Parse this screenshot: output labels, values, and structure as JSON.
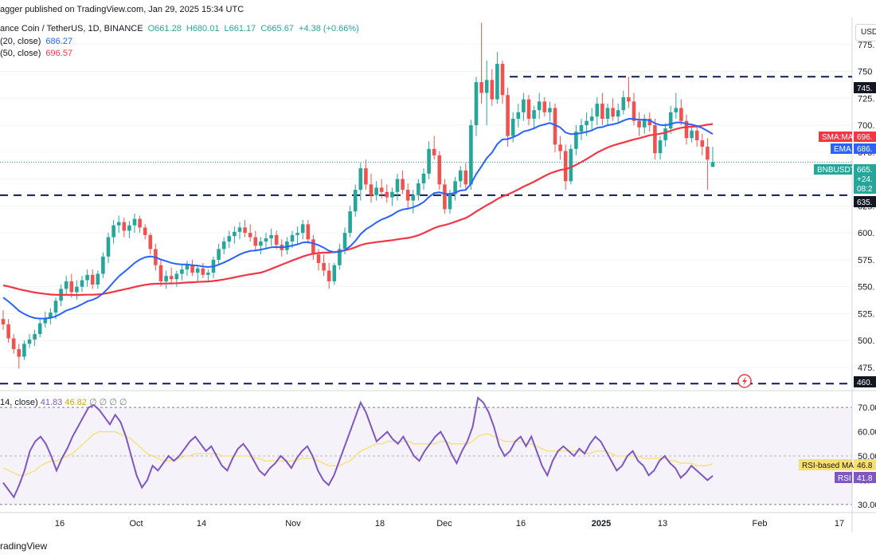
{
  "header": {
    "publisher": "agger published on TradingView.com, Jan 29, 2025 15:34 UTC",
    "symbol": "ance Coin / TetherUS, 1D, BINANCE",
    "open": "O661.28",
    "high": "H680.01",
    "low": "L661.17",
    "close": "C665.67",
    "change": "+4.38 (+0.66%)",
    "ema_label": "(20, close)",
    "ema_value": "686.27",
    "sma_label": "(50, close)",
    "sma_value": "696.57",
    "currency": "USD"
  },
  "rsi_header": {
    "label": "14, close)",
    "rsi": "41.83",
    "rsi_ma": "46.82",
    "zeros": "∅ ∅ ∅ ∅"
  },
  "price_tags": {
    "resistance": "745.",
    "support": "635.",
    "low_support": "460.",
    "sma": "696.",
    "sma_name": "SMA:MA",
    "ema": "686.",
    "ema_name": "EMA",
    "last": "665.",
    "last_name": "BNBUSDT",
    "last_change": "+24.",
    "countdown": "08:2",
    "rsi_ma_tag": "46.8",
    "rsi_ma_name": "RSI-based MA",
    "rsi_tag": "41.8",
    "rsi_name": "RSI"
  },
  "watermark": "radingView",
  "colors": {
    "up": "#26a69a",
    "down": "#ef5350",
    "ema": "#2962ff",
    "sma": "#f23645",
    "rsi": "#7e57c2",
    "rsi_ma": "#f7e06b"
  },
  "chart_data": [
    {
      "type": "candlestick",
      "title": "BNB/USDT 1D",
      "ylim": [
        455,
        800
      ],
      "y_ticks": [
        775,
        750,
        725,
        700,
        675,
        650,
        625,
        600,
        575,
        550,
        525,
        500,
        475
      ],
      "y_tick_labels": [
        "775.",
        "750",
        "725.",
        "700.",
        "675.",
        "650.",
        "625.",
        "600.",
        "575.",
        "550.",
        "525.",
        "500.",
        "475."
      ],
      "x_tick_labels": [
        "16",
        "Oct",
        "14",
        "Nov",
        "18",
        "Dec",
        "16",
        "2025",
        "13",
        "Feb",
        "17"
      ],
      "horizontal_levels": [
        745,
        635,
        460
      ],
      "ohlc": [
        [
          520,
          528,
          510,
          515
        ],
        [
          515,
          520,
          498,
          502
        ],
        [
          502,
          506,
          488,
          492
        ],
        [
          492,
          497,
          474,
          485
        ],
        [
          485,
          500,
          482,
          497
        ],
        [
          497,
          506,
          493,
          501
        ],
        [
          501,
          510,
          495,
          506
        ],
        [
          506,
          520,
          503,
          516
        ],
        [
          516,
          527,
          512,
          521
        ],
        [
          521,
          530,
          515,
          526
        ],
        [
          526,
          540,
          520,
          537
        ],
        [
          537,
          552,
          532,
          548
        ],
        [
          548,
          560,
          542,
          555
        ],
        [
          555,
          562,
          540,
          545
        ],
        [
          545,
          556,
          538,
          550
        ],
        [
          550,
          560,
          545,
          556
        ],
        [
          556,
          566,
          550,
          561
        ],
        [
          561,
          566,
          548,
          552
        ],
        [
          552,
          565,
          548,
          562
        ],
        [
          562,
          582,
          558,
          578
        ],
        [
          578,
          600,
          572,
          596
        ],
        [
          596,
          612,
          590,
          607
        ],
        [
          607,
          616,
          600,
          610
        ],
        [
          610,
          614,
          596,
          602
        ],
        [
          602,
          611,
          595,
          607
        ],
        [
          607,
          618,
          600,
          613
        ],
        [
          613,
          616,
          600,
          605
        ],
        [
          605,
          608,
          594,
          598
        ],
        [
          598,
          600,
          580,
          585
        ],
        [
          585,
          590,
          565,
          570
        ],
        [
          570,
          575,
          550,
          555
        ],
        [
          555,
          565,
          548,
          560
        ],
        [
          560,
          568,
          552,
          557
        ],
        [
          557,
          565,
          550,
          562
        ],
        [
          562,
          570,
          556,
          566
        ],
        [
          566,
          574,
          560,
          570
        ],
        [
          570,
          575,
          560,
          563
        ],
        [
          563,
          570,
          555,
          567
        ],
        [
          567,
          572,
          558,
          561
        ],
        [
          561,
          566,
          554,
          563
        ],
        [
          563,
          578,
          558,
          575
        ],
        [
          575,
          590,
          570,
          585
        ],
        [
          585,
          596,
          580,
          592
        ],
        [
          592,
          602,
          586,
          597
        ],
        [
          597,
          606,
          590,
          601
        ],
        [
          601,
          610,
          594,
          605
        ],
        [
          605,
          612,
          596,
          600
        ],
        [
          600,
          608,
          592,
          596
        ],
        [
          596,
          602,
          584,
          588
        ],
        [
          588,
          596,
          580,
          592
        ],
        [
          592,
          600,
          586,
          595
        ],
        [
          595,
          604,
          588,
          598
        ],
        [
          598,
          602,
          585,
          589
        ],
        [
          589,
          594,
          578,
          584
        ],
        [
          584,
          596,
          580,
          592
        ],
        [
          592,
          602,
          586,
          598
        ],
        [
          598,
          606,
          590,
          600
        ],
        [
          600,
          612,
          594,
          608
        ],
        [
          608,
          612,
          590,
          594
        ],
        [
          594,
          598,
          575,
          580
        ],
        [
          580,
          585,
          565,
          572
        ],
        [
          572,
          580,
          560,
          565
        ],
        [
          565,
          572,
          548,
          555
        ],
        [
          555,
          572,
          552,
          570
        ],
        [
          570,
          590,
          566,
          585
        ],
        [
          585,
          605,
          580,
          600
        ],
        [
          600,
          625,
          596,
          620
        ],
        [
          620,
          645,
          615,
          640
        ],
        [
          640,
          665,
          630,
          660
        ],
        [
          660,
          668,
          640,
          645
        ],
        [
          645,
          655,
          628,
          635
        ],
        [
          635,
          648,
          630,
          642
        ],
        [
          642,
          650,
          632,
          638
        ],
        [
          638,
          645,
          628,
          633
        ],
        [
          633,
          642,
          625,
          638
        ],
        [
          638,
          655,
          630,
          650
        ],
        [
          650,
          658,
          636,
          640
        ],
        [
          640,
          646,
          622,
          630
        ],
        [
          630,
          640,
          618,
          635
        ],
        [
          635,
          650,
          630,
          646
        ],
        [
          646,
          660,
          640,
          655
        ],
        [
          655,
          685,
          650,
          678
        ],
        [
          678,
          690,
          668,
          672
        ],
        [
          672,
          676,
          640,
          645
        ],
        [
          645,
          650,
          618,
          622
        ],
        [
          622,
          640,
          618,
          636
        ],
        [
          636,
          652,
          630,
          648
        ],
        [
          648,
          662,
          642,
          658
        ],
        [
          658,
          665,
          640,
          645
        ],
        [
          645,
          705,
          640,
          700
        ],
        [
          700,
          745,
          690,
          740
        ],
        [
          740,
          795,
          720,
          730
        ],
        [
          730,
          760,
          700,
          742
        ],
        [
          742,
          752,
          718,
          724
        ],
        [
          724,
          768,
          720,
          757
        ],
        [
          757,
          760,
          720,
          728
        ],
        [
          728,
          735,
          680,
          690
        ],
        [
          690,
          712,
          684,
          706
        ],
        [
          706,
          720,
          698,
          712
        ],
        [
          712,
          730,
          704,
          724
        ],
        [
          724,
          728,
          700,
          706
        ],
        [
          706,
          718,
          696,
          714
        ],
        [
          714,
          730,
          706,
          722
        ],
        [
          722,
          726,
          708,
          712
        ],
        [
          712,
          722,
          704,
          716
        ],
        [
          716,
          720,
          675,
          682
        ],
        [
          682,
          690,
          668,
          676
        ],
        [
          676,
          682,
          640,
          648
        ],
        [
          648,
          682,
          645,
          678
        ],
        [
          678,
          700,
          672,
          694
        ],
        [
          694,
          706,
          686,
          700
        ],
        [
          700,
          712,
          690,
          704
        ],
        [
          704,
          716,
          696,
          708
        ],
        [
          708,
          726,
          700,
          720
        ],
        [
          720,
          730,
          700,
          706
        ],
        [
          706,
          720,
          700,
          716
        ],
        [
          716,
          725,
          704,
          708
        ],
        [
          708,
          720,
          702,
          714
        ],
        [
          714,
          732,
          710,
          726
        ],
        [
          726,
          745,
          716,
          722
        ],
        [
          722,
          730,
          700,
          704
        ],
        [
          704,
          712,
          690,
          698
        ],
        [
          698,
          710,
          692,
          706
        ],
        [
          706,
          712,
          694,
          700
        ],
        [
          700,
          706,
          668,
          674
        ],
        [
          674,
          690,
          668,
          686
        ],
        [
          686,
          702,
          680,
          697
        ],
        [
          697,
          718,
          692,
          712
        ],
        [
          712,
          730,
          706,
          716
        ],
        [
          716,
          724,
          700,
          704
        ],
        [
          704,
          710,
          682,
          688
        ],
        [
          688,
          700,
          684,
          695
        ],
        [
          695,
          700,
          680,
          686
        ],
        [
          686,
          692,
          672,
          680
        ],
        [
          680,
          688,
          640,
          668
        ],
        [
          661.28,
          680.01,
          661.17,
          665.67
        ]
      ],
      "series": [
        {
          "name": "EMA (20, close)",
          "last": 686.27
        },
        {
          "name": "SMA (50, close)",
          "last": 696.57
        }
      ]
    },
    {
      "type": "line",
      "title": "RSI (14, close)",
      "ylim": [
        27,
        73
      ],
      "y_ticks": [
        70,
        60,
        50,
        40,
        30
      ],
      "y_tick_labels": [
        "70.00",
        "60.00",
        "50.00",
        "40.",
        "30.00"
      ],
      "bands": [
        30,
        70
      ],
      "series": [
        {
          "name": "RSI",
          "values": [
            39,
            36,
            33,
            38,
            44,
            52,
            56,
            58,
            55,
            50,
            44,
            49,
            53,
            58,
            62,
            66,
            70,
            71,
            69,
            66,
            63,
            67,
            64,
            58,
            50,
            42,
            37,
            40,
            46,
            44,
            47,
            50,
            48,
            50,
            53,
            56,
            58,
            55,
            52,
            54,
            50,
            46,
            44,
            49,
            53,
            55,
            52,
            48,
            44,
            42,
            45,
            47,
            50,
            48,
            45,
            49,
            52,
            54,
            50,
            44,
            40,
            38,
            42,
            48,
            54,
            60,
            66,
            72,
            68,
            62,
            56,
            58,
            60,
            57,
            55,
            58,
            54,
            50,
            48,
            52,
            55,
            58,
            60,
            56,
            51,
            47,
            52,
            56,
            62,
            74,
            72,
            68,
            62,
            54,
            50,
            52,
            56,
            58,
            54,
            58,
            52,
            46,
            42,
            48,
            52,
            54,
            52,
            50,
            53,
            51,
            55,
            58,
            56,
            52,
            48,
            44,
            46,
            50,
            52,
            48,
            46,
            42,
            44,
            48,
            50,
            47,
            45,
            41,
            43,
            46,
            44,
            42,
            40,
            41.83
          ]
        },
        {
          "name": "RSI-based MA",
          "values": [
            45,
            44,
            43,
            42,
            42,
            43,
            44,
            46,
            47,
            48,
            48,
            49,
            50,
            51,
            53,
            55,
            57,
            59,
            60,
            60,
            60,
            60,
            59,
            58,
            57,
            55,
            53,
            51,
            50,
            49,
            48,
            48,
            48,
            49,
            50,
            50,
            51,
            51,
            51,
            51,
            51,
            50,
            50,
            50,
            50,
            50,
            50,
            49,
            49,
            48,
            48,
            48,
            48,
            48,
            48,
            48,
            49,
            49,
            49,
            48,
            47,
            46,
            46,
            46,
            47,
            48,
            50,
            52,
            53,
            54,
            55,
            55,
            56,
            56,
            56,
            56,
            56,
            55,
            55,
            55,
            55,
            55,
            56,
            56,
            55,
            55,
            55,
            55,
            56,
            58,
            59,
            59,
            58,
            57,
            56,
            56,
            56,
            56,
            55,
            55,
            54,
            53,
            52,
            52,
            52,
            52,
            52,
            52,
            52,
            51,
            51,
            52,
            52,
            52,
            51,
            50,
            50,
            50,
            50,
            50,
            49,
            49,
            49,
            49,
            49,
            48,
            48,
            47,
            47,
            47,
            46,
            46,
            46,
            46.82
          ]
        }
      ]
    }
  ]
}
